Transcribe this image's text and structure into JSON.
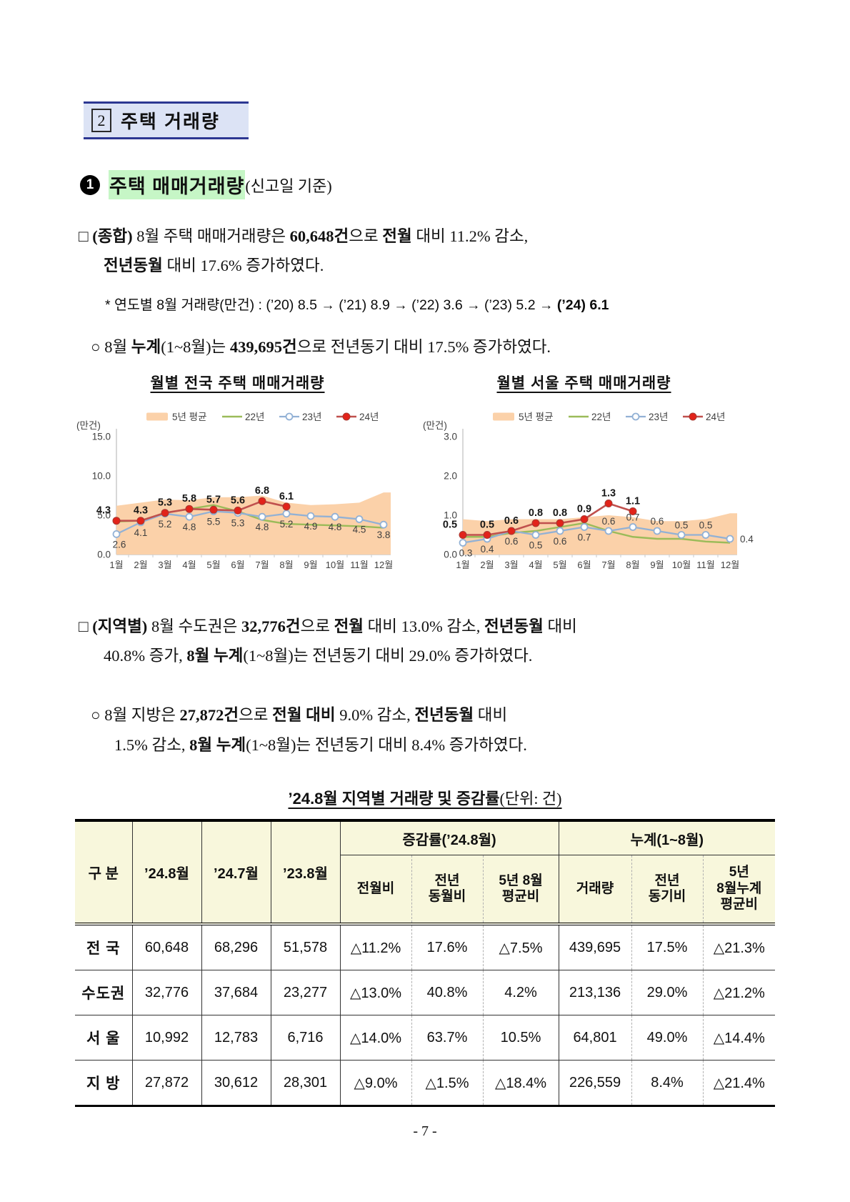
{
  "section_header": {
    "number": "2",
    "title": "주택 거래량"
  },
  "subsection": {
    "number": "1",
    "title": "주택 매매거래량",
    "suffix": "(신고일 기준)"
  },
  "paragraphs": {
    "overall": {
      "lines": [
        [
          {
            "t": "□ ",
            "b": false
          },
          {
            "t": "(종합)",
            "b": true
          },
          {
            "t": " 8월 주택 매매거래량은 ",
            "b": false
          },
          {
            "t": "60,648건",
            "b": true
          },
          {
            "t": "으로 ",
            "b": false
          },
          {
            "t": "전월",
            "b": true
          },
          {
            "t": " 대비 11.2% 감소,",
            "b": false
          }
        ],
        [
          {
            "t": "전년동월",
            "b": true
          },
          {
            "t": " 대비 17.6% 증가하였다.",
            "b": false
          }
        ]
      ]
    },
    "note": {
      "segments": [
        {
          "t": "* 연도별 8월 거래량(만건) : (’20) 8.5 → (’21) 8.9 → (’22) 3.6 → (’23) 5.2 → ",
          "b": false
        },
        {
          "t": "(’24) 6.1",
          "b": true
        }
      ]
    },
    "cumulative": {
      "segments": [
        {
          "t": "○ 8월 ",
          "b": false
        },
        {
          "t": "누계",
          "b": true
        },
        {
          "t": "(1~8월)는 ",
          "b": false
        },
        {
          "t": "439,695건",
          "b": true
        },
        {
          "t": "으로 전년동기 대비 17.5% 증가하였다.",
          "b": false
        }
      ]
    },
    "regional": {
      "lines": [
        [
          {
            "t": "□ ",
            "b": false
          },
          {
            "t": "(지역별)",
            "b": true
          },
          {
            "t": " 8월 수도권은 ",
            "b": false
          },
          {
            "t": "32,776건",
            "b": true
          },
          {
            "t": "으로 ",
            "b": false
          },
          {
            "t": "전월",
            "b": true
          },
          {
            "t": " 대비 13.0% 감소, ",
            "b": false
          },
          {
            "t": "전년동월",
            "b": true
          },
          {
            "t": " 대비",
            "b": false
          }
        ],
        [
          {
            "t": "40.8% 증가, ",
            "b": false
          },
          {
            "t": "8월 누계",
            "b": true
          },
          {
            "t": "(1~8월)는 전년동기 대비 29.0% 증가하였다.",
            "b": false
          }
        ]
      ]
    },
    "local": {
      "lines": [
        [
          {
            "t": "○ 8월 지방은 ",
            "b": false
          },
          {
            "t": "27,872건",
            "b": true
          },
          {
            "t": "으로 ",
            "b": false
          },
          {
            "t": "전월 대비",
            "b": true
          },
          {
            "t": " 9.0% 감소, ",
            "b": false
          },
          {
            "t": "전년동월",
            "b": true
          },
          {
            "t": " 대비",
            "b": false
          }
        ],
        [
          {
            "t": "1.5% 감소, ",
            "b": false
          },
          {
            "t": "8월 누계",
            "b": true
          },
          {
            "t": "(1~8월)는 전년동기 대비 8.4% 증가하였다.",
            "b": false
          }
        ]
      ]
    }
  },
  "chart_data": [
    {
      "type": "line",
      "title": "월별 전국 주택 매매거래량",
      "unit_label": "(만건)",
      "categories": [
        "1월",
        "2월",
        "3월",
        "4월",
        "5월",
        "6월",
        "7월",
        "8월",
        "9월",
        "10월",
        "11월",
        "12월"
      ],
      "ylim": [
        0,
        15
      ],
      "yticks": [
        0,
        5,
        10,
        15
      ],
      "legend_position": "top",
      "series": [
        {
          "name": "5년 평균",
          "type": "area",
          "color": "#fbd1a9",
          "values": [
            6.2,
            6.6,
            7.0,
            6.9,
            7.3,
            7.3,
            7.5,
            6.6,
            6.3,
            6.4,
            6.6,
            7.9
          ]
        },
        {
          "name": "22년",
          "type": "line",
          "color": "#9bbb59",
          "values": [
            4.2,
            4.3,
            5.3,
            5.8,
            6.3,
            5.5,
            4.4,
            3.9,
            3.8,
            3.7,
            3.6,
            3.4
          ]
        },
        {
          "name": "23년",
          "type": "line",
          "marker": "open",
          "color": "#92b1d5",
          "values": [
            2.6,
            4.1,
            5.2,
            4.8,
            5.5,
            5.3,
            4.8,
            5.2,
            4.9,
            4.8,
            4.5,
            3.8
          ],
          "labels": [
            "2.6",
            "4.1",
            "5.2",
            "4.8",
            "5.5",
            "5.3",
            "4.8",
            "5.2",
            "4.9",
            "4.8",
            "4.5",
            "3.8"
          ]
        },
        {
          "name": "24년",
          "type": "line",
          "marker": "filled",
          "color": "#c0504d",
          "marker_color": "#e2231a",
          "values": [
            4.3,
            4.3,
            5.3,
            5.8,
            5.7,
            5.6,
            6.8,
            6.1
          ],
          "labels": [
            "4.3",
            "4.3",
            "5.3",
            "5.8",
            "5.7",
            "5.6",
            "6.8",
            "6.1"
          ]
        }
      ]
    },
    {
      "type": "line",
      "title": "월별 서울 주택 매매거래량",
      "unit_label": "(만건)",
      "categories": [
        "1월",
        "2월",
        "3월",
        "4월",
        "5월",
        "6월",
        "7월",
        "8월",
        "9월",
        "10월",
        "11월",
        "12월"
      ],
      "ylim": [
        0,
        3
      ],
      "yticks": [
        0,
        1,
        2,
        3
      ],
      "legend_position": "top",
      "series": [
        {
          "name": "5년 평균",
          "type": "area",
          "color": "#fbd1a9",
          "values": [
            0.9,
            0.85,
            0.9,
            0.9,
            0.9,
            0.95,
            1.0,
            0.95,
            0.85,
            0.85,
            0.9,
            1.05
          ]
        },
        {
          "name": "22년",
          "type": "line",
          "color": "#9bbb59",
          "values": [
            0.45,
            0.45,
            0.55,
            0.6,
            0.7,
            0.8,
            0.6,
            0.45,
            0.4,
            0.4,
            0.33,
            0.3
          ]
        },
        {
          "name": "23년",
          "type": "line",
          "marker": "open",
          "color": "#92b1d5",
          "values": [
            0.3,
            0.4,
            0.6,
            0.5,
            0.6,
            0.7,
            0.6,
            0.7,
            0.6,
            0.5,
            0.5,
            0.4
          ],
          "labels": [
            "0.3",
            "0.4",
            "0.6",
            "0.5",
            "0.6",
            "0.7",
            "0.6",
            "0.7",
            "0.6",
            "0.5",
            "0.5",
            "0.4"
          ]
        },
        {
          "name": "24년",
          "type": "line",
          "marker": "filled",
          "color": "#c0504d",
          "marker_color": "#e2231a",
          "values": [
            0.5,
            0.5,
            0.6,
            0.8,
            0.8,
            0.9,
            1.3,
            1.1
          ],
          "labels": [
            "0.5",
            "0.5",
            "0.6",
            "0.8",
            "0.8",
            "0.9",
            "1.3",
            "1.1"
          ]
        }
      ]
    }
  ],
  "table": {
    "title_segments": [
      {
        "t": "’24.8월 지역별 거래량 및 증감률",
        "b": true
      },
      {
        "t": "(단위: 건)",
        "b": false,
        "serif": true
      }
    ],
    "row_header": "구 분",
    "col_headers": [
      "’24.8월",
      "’24.7월",
      "’23.8월"
    ],
    "group_headers": [
      {
        "label": "증감률(’24.8월)"
      },
      {
        "label": "누계(1~8월)"
      }
    ],
    "sub_headers": [
      "전월비",
      "전년\n동월비",
      "5년 8월\n평균비",
      "거래량",
      "전년\n동기비",
      "5년\n8월누계\n평균비"
    ],
    "rows": [
      {
        "label": "전 국",
        "values": [
          "60,648",
          "68,296",
          "51,578",
          "△11.2%",
          "17.6%",
          "△7.5%",
          "439,695",
          "17.5%",
          "△21.3%"
        ]
      },
      {
        "label": "수도권",
        "values": [
          "32,776",
          "37,684",
          "23,277",
          "△13.0%",
          "40.8%",
          "4.2%",
          "213,136",
          "29.0%",
          "△21.2%"
        ]
      },
      {
        "label": "서 울",
        "values": [
          "10,992",
          "12,783",
          "6,716",
          "△14.0%",
          "63.7%",
          "10.5%",
          "64,801",
          "49.0%",
          "△14.4%"
        ]
      },
      {
        "label": "지 방",
        "values": [
          "27,872",
          "30,612",
          "28,301",
          "△9.0%",
          "△1.5%",
          "△18.4%",
          "226,559",
          "8.4%",
          "△21.4%"
        ]
      }
    ]
  },
  "page": {
    "footer": "- 7 -"
  }
}
